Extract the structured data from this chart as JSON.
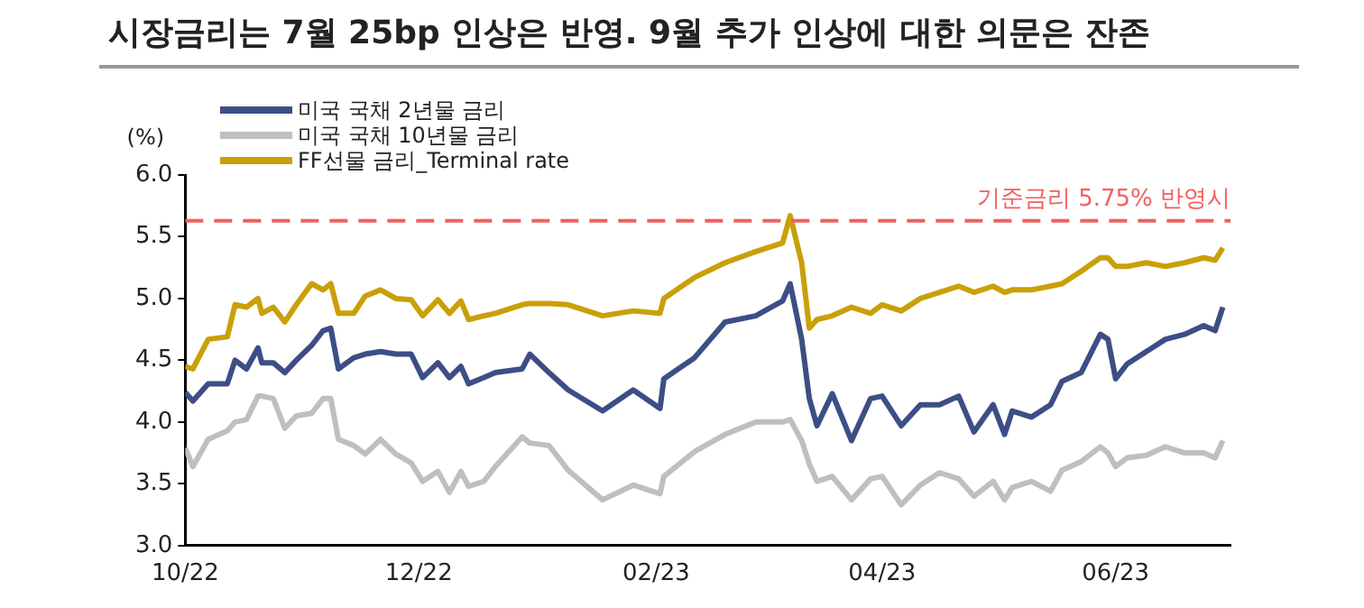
{
  "chart_data": {
    "type": "line",
    "title": "시장금리는 7월 25bp 인상은 반영. 9월 추가 인상에 대한 의문은 잔존",
    "ylabel": "(%)",
    "x": [
      "2022-10-01",
      "2022-10-03",
      "2022-10-07",
      "2022-10-12",
      "2022-10-14",
      "2022-10-17",
      "2022-10-20",
      "2022-10-21",
      "2022-10-24",
      "2022-10-27",
      "2022-10-30",
      "2022-11-03",
      "2022-11-06",
      "2022-11-08",
      "2022-11-10",
      "2022-11-14",
      "2022-11-17",
      "2022-11-21",
      "2022-11-25",
      "2022-11-29",
      "2022-12-02",
      "2022-12-06",
      "2022-12-09",
      "2022-12-12",
      "2022-12-14",
      "2022-12-18",
      "2022-12-21",
      "2022-12-28",
      "2022-12-30",
      "2023-01-04",
      "2023-01-09",
      "2023-01-18",
      "2023-01-26",
      "2023-02-02",
      "2023-02-03",
      "2023-02-11",
      "2023-02-19",
      "2023-02-27",
      "2023-03-06",
      "2023-03-08",
      "2023-03-11",
      "2023-03-13",
      "2023-03-15",
      "2023-03-19",
      "2023-03-24",
      "2023-03-29",
      "2023-04-01",
      "2023-04-06",
      "2023-04-11",
      "2023-04-16",
      "2023-04-21",
      "2023-04-25",
      "2023-04-30",
      "2023-05-03",
      "2023-05-05",
      "2023-05-10",
      "2023-05-15",
      "2023-05-18",
      "2023-05-23",
      "2023-05-28",
      "2023-05-30",
      "2023-06-01",
      "2023-06-04",
      "2023-06-09",
      "2023-06-14",
      "2023-06-19",
      "2023-06-24",
      "2023-06-27",
      "2023-06-29"
    ],
    "series": [
      {
        "name": "미국 국채 2년물 금리",
        "color": "#3d4e86",
        "values": [
          4.24,
          4.17,
          4.31,
          4.31,
          4.5,
          4.43,
          4.6,
          4.48,
          4.48,
          4.4,
          4.5,
          4.62,
          4.74,
          4.76,
          4.43,
          4.52,
          4.55,
          4.57,
          4.55,
          4.55,
          4.36,
          4.48,
          4.36,
          4.45,
          4.31,
          4.36,
          4.4,
          4.43,
          4.55,
          4.4,
          4.26,
          4.09,
          4.26,
          4.11,
          4.35,
          4.52,
          4.81,
          4.86,
          4.98,
          5.12,
          4.67,
          4.19,
          3.97,
          4.23,
          3.85,
          4.19,
          4.21,
          3.97,
          4.14,
          4.14,
          4.21,
          3.92,
          4.14,
          3.9,
          4.09,
          4.04,
          4.14,
          4.33,
          4.4,
          4.71,
          4.67,
          4.35,
          4.47,
          4.57,
          4.67,
          4.71,
          4.78,
          4.74,
          4.93
        ]
      },
      {
        "name": "미국 국채 10년물 금리",
        "color": "#bfbfbf",
        "values": [
          3.79,
          3.64,
          3.86,
          3.93,
          4.0,
          4.02,
          4.21,
          4.21,
          4.19,
          3.95,
          4.05,
          4.07,
          4.19,
          4.19,
          3.86,
          3.81,
          3.74,
          3.86,
          3.74,
          3.67,
          3.52,
          3.6,
          3.43,
          3.6,
          3.48,
          3.52,
          3.64,
          3.88,
          3.83,
          3.81,
          3.61,
          3.37,
          3.49,
          3.42,
          3.56,
          3.76,
          3.9,
          4.0,
          4.0,
          4.02,
          3.85,
          3.66,
          3.52,
          3.56,
          3.37,
          3.54,
          3.56,
          3.33,
          3.49,
          3.59,
          3.54,
          3.4,
          3.52,
          3.37,
          3.47,
          3.52,
          3.44,
          3.61,
          3.68,
          3.8,
          3.75,
          3.64,
          3.71,
          3.73,
          3.8,
          3.75,
          3.75,
          3.71,
          3.85
        ]
      },
      {
        "name": "FF선물 금리_Terminal rate",
        "color": "#c9a008",
        "values": [
          4.45,
          4.43,
          4.67,
          4.69,
          4.95,
          4.93,
          5.0,
          4.88,
          4.93,
          4.81,
          4.95,
          5.12,
          5.07,
          5.12,
          4.88,
          4.88,
          5.02,
          5.07,
          5.0,
          4.99,
          4.86,
          4.99,
          4.88,
          4.98,
          4.83,
          4.86,
          4.88,
          4.95,
          4.96,
          4.96,
          4.95,
          4.86,
          4.9,
          4.88,
          5.0,
          5.17,
          5.29,
          5.38,
          5.45,
          5.67,
          5.29,
          4.76,
          4.83,
          4.86,
          4.93,
          4.88,
          4.95,
          4.9,
          5.0,
          5.05,
          5.1,
          5.05,
          5.1,
          5.05,
          5.07,
          5.07,
          5.1,
          5.12,
          5.22,
          5.33,
          5.33,
          5.26,
          5.26,
          5.29,
          5.26,
          5.29,
          5.33,
          5.31,
          5.41
        ]
      }
    ],
    "xlim": [
      "2022-10-01",
      "2023-07-01"
    ],
    "xticks": [
      {
        "value": "2022-10-01",
        "label": "10/22"
      },
      {
        "value": "2022-12-01",
        "label": "12/22"
      },
      {
        "value": "2023-02-01",
        "label": "02/23"
      },
      {
        "value": "2023-04-01",
        "label": "04/23"
      },
      {
        "value": "2023-06-01",
        "label": "06/23"
      }
    ],
    "ylim": [
      3.0,
      6.0
    ],
    "yticks": [
      {
        "value": 3,
        "label": "3.0"
      },
      {
        "value": 3.5,
        "label": "3.5"
      },
      {
        "value": 4,
        "label": "4.0"
      },
      {
        "value": 4.5,
        "label": "4.5"
      },
      {
        "value": 5,
        "label": "5.0"
      },
      {
        "value": 5.5,
        "label": "5.5"
      },
      {
        "value": 6,
        "label": "6.0"
      }
    ],
    "ref_lines": [
      {
        "axis": "y",
        "value": 5.63,
        "label": "기준금리 5.75% 반영시",
        "color": "#f06060",
        "line_style": "dashed"
      }
    ],
    "grid": false,
    "legend": "top left",
    "marker": "none",
    "line_style": "solid"
  }
}
